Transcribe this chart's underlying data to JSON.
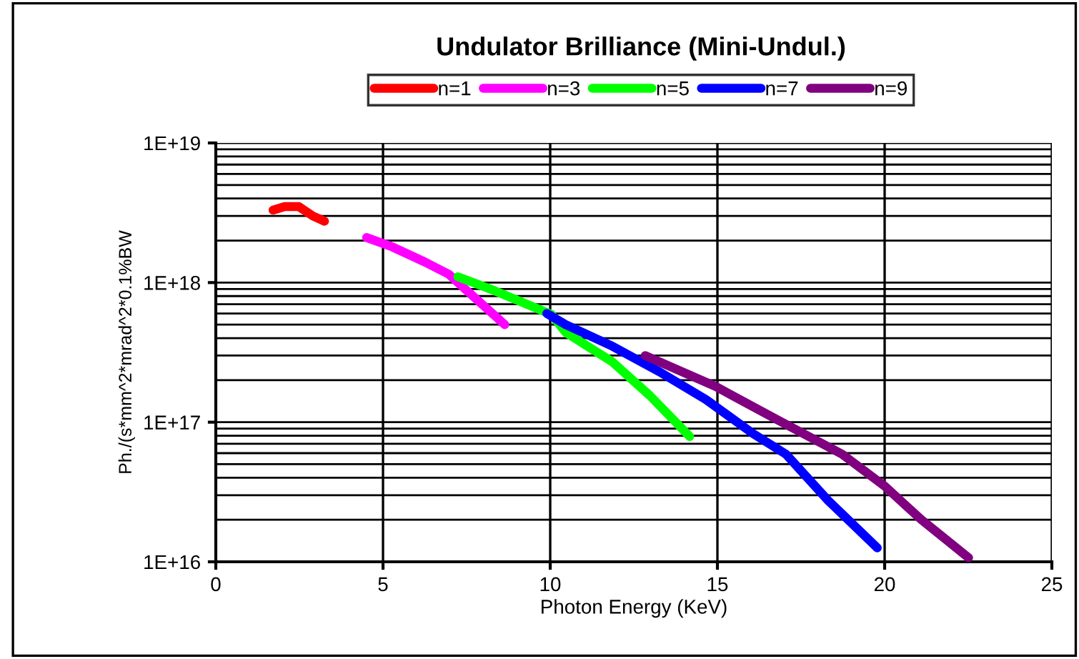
{
  "chart_data": {
    "type": "line",
    "title": "Undulator Brilliance (Mini-Undul.)",
    "xlabel": "Photon Energy (KeV)",
    "ylabel": "Ph./(s*mm^2*mrad^2*0.1%BW",
    "log": "y",
    "grid": true,
    "legend": "top",
    "line_style": "solid",
    "marker": "none",
    "xlim": [
      0,
      25
    ],
    "xticks": [
      0,
      5,
      10,
      15,
      20,
      25
    ],
    "ylim": [
      1e+16,
      1e+19
    ],
    "yticks": [
      {
        "value": 1e+16,
        "label": "1E+16"
      },
      {
        "value": 1e+17,
        "label": "1E+17"
      },
      {
        "value": 1e+18,
        "label": "1E+18"
      },
      {
        "value": 1e+19,
        "label": "1E+19"
      }
    ],
    "series": [
      {
        "name": "n=1",
        "color": "#ff0000",
        "x": [
          1.71,
          2.06,
          2.48,
          2.9,
          3.25
        ],
        "values": [
          3.3e+18,
          3.5e+18,
          3.5e+18,
          3e+18,
          2.75e+18
        ]
      },
      {
        "name": "n=3",
        "color": "#ff00ff",
        "x": [
          4.51,
          5.28,
          6.26,
          6.96,
          7.52,
          8.08,
          8.64
        ],
        "values": [
          2.1e+18,
          1.8e+18,
          1.4e+18,
          1.15e+18,
          8.7e+17,
          6.6e+17,
          5e+17
        ]
      },
      {
        "name": "n=5",
        "color": "#00ff00",
        "x": [
          7.24,
          8.36,
          10.04,
          10.46,
          11.86,
          12.98,
          14.17
        ],
        "values": [
          1.1e+18,
          8.7e+17,
          5.9e+17,
          4.4e+17,
          2.7e+17,
          1.55e+17,
          7.9e+16
        ]
      },
      {
        "name": "n=7",
        "color": "#0000ff",
        "x": [
          9.9,
          10.46,
          11.86,
          13.26,
          14.66,
          16.06,
          17.05,
          18.31,
          19.78
        ],
        "values": [
          6e+17,
          5e+17,
          3.5e+17,
          2.3e+17,
          1.45e+17,
          8.3e+16,
          5.9e+16,
          2.75e+16,
          1.26e+16
        ]
      },
      {
        "name": "n=9",
        "color": "#800080",
        "x": [
          12.84,
          14.95,
          16.76,
          18.73,
          19.99,
          21.1,
          22.51
        ],
        "values": [
          3e+17,
          1.8e+17,
          1.05e+17,
          5.9e+16,
          3.5e+16,
          2e+16,
          1.07e+16
        ]
      }
    ]
  }
}
